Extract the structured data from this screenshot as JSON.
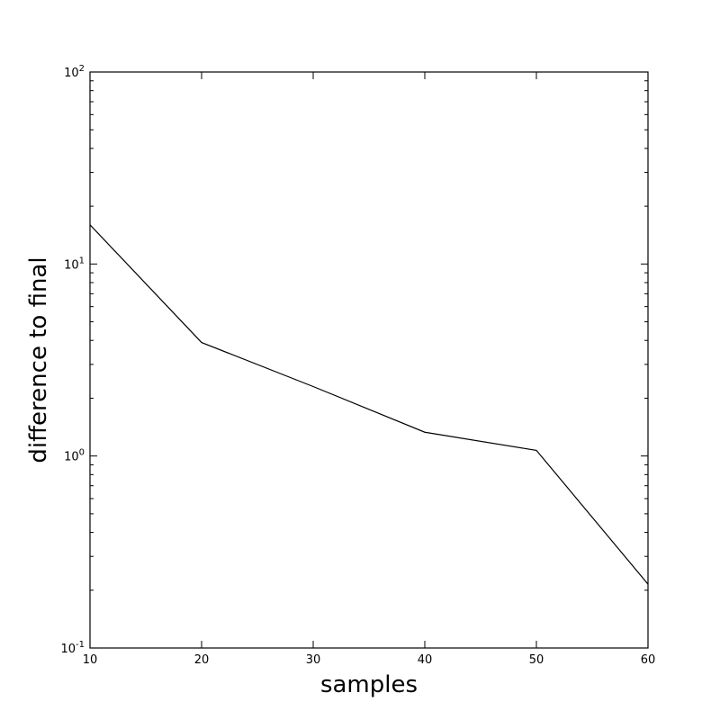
{
  "chart_data": {
    "type": "line",
    "title": "",
    "xlabel": "samples",
    "ylabel": "difference to final",
    "x": [
      10,
      20,
      30,
      40,
      50,
      60
    ],
    "series": [
      {
        "values": [
          16.0,
          3.9,
          2.3,
          1.33,
          1.07,
          0.215
        ],
        "color": "#000000"
      }
    ],
    "xlim": [
      10,
      60
    ],
    "ylim": [
      0.1,
      100
    ],
    "yscale": "log",
    "xticks": [
      10,
      20,
      30,
      40,
      50,
      60
    ],
    "xtick_labels": [
      "10",
      "20",
      "30",
      "40",
      "50",
      "60"
    ],
    "yticks": [
      0.1,
      1,
      10,
      100
    ],
    "ytick_labels": [
      {
        "base": "10",
        "exp": "-1"
      },
      {
        "base": "10",
        "exp": "0"
      },
      {
        "base": "10",
        "exp": "1"
      },
      {
        "base": "10",
        "exp": "2"
      }
    ],
    "grid": false,
    "legend": false
  }
}
